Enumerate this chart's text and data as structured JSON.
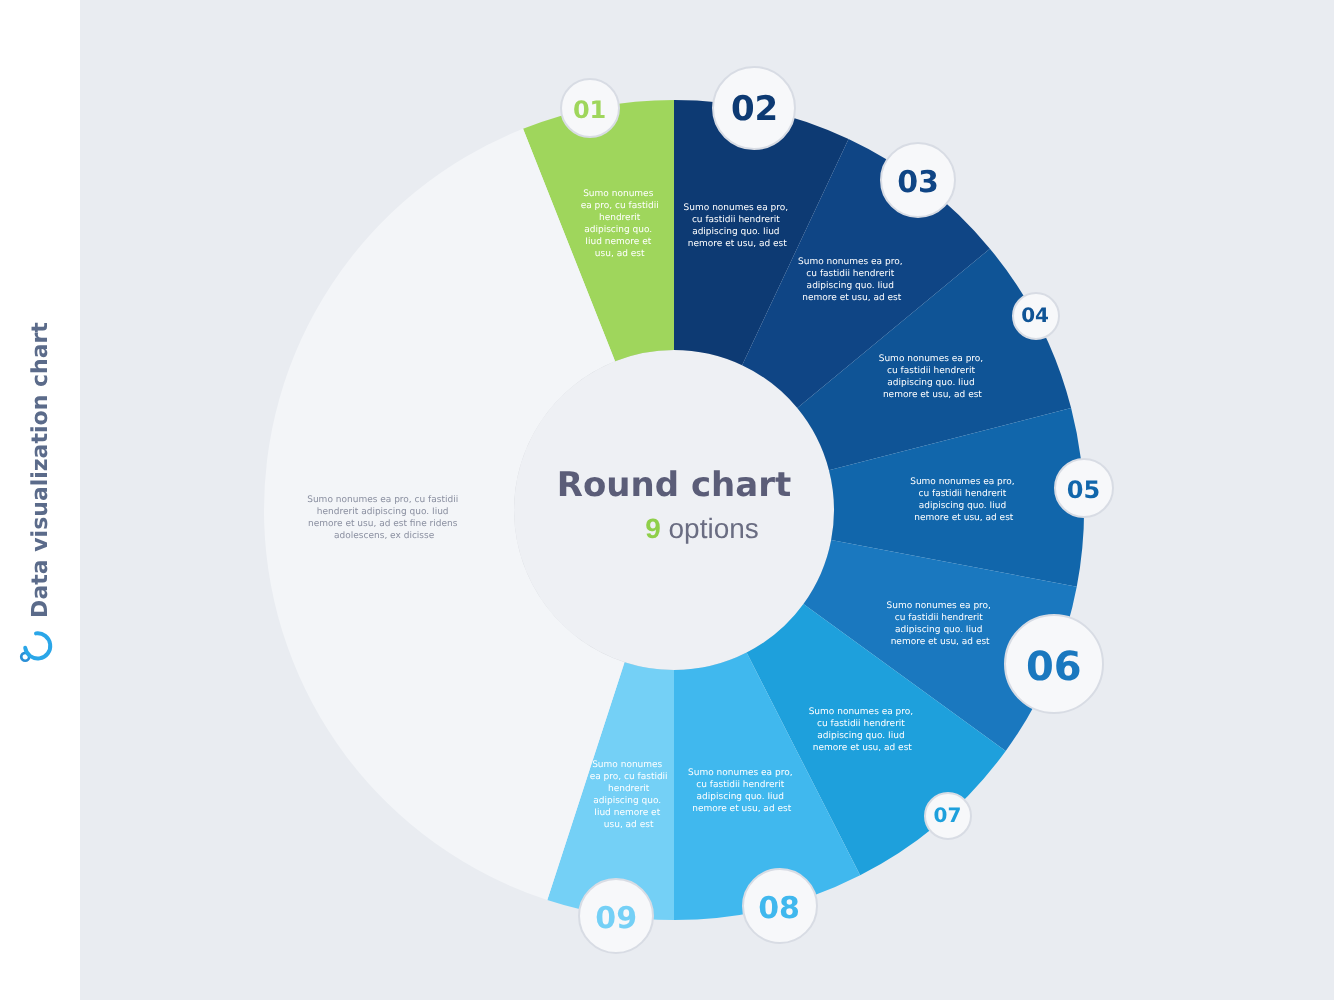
{
  "chart_data": {
    "type": "donut",
    "title": "Round chart",
    "subtitle": "9 options",
    "categories": [
      "01",
      "02",
      "03",
      "04",
      "05",
      "06",
      "07",
      "08",
      "09",
      null
    ],
    "values": [
      6,
      7,
      7,
      7,
      7,
      7,
      7.5,
      7.5,
      5,
      39
    ],
    "colors": [
      "#9fd65c",
      "#0d3a73",
      "#0f4585",
      "#0f5496",
      "#1166ab",
      "#1a78bf",
      "#1ea0dc",
      "#40b8ee",
      "#74d0f6",
      "#f3f5f8"
    ],
    "annotations": [
      "Sumo nonumes ea pro, cu fastidii hendrerit adipiscing quo. Iiud nemore et usu, ad est",
      "Sumo nonumes ea pro, cu fastidii hendrerit adipiscing quo. Iiud nemore et usu, ad est",
      "Sumo nonumes ea pro, cu fastidii hendrerit adipiscing quo. Iiud nemore et usu, ad est",
      "Sumo nonumes ea pro, cu fastidii hendrerit adipiscing quo. Iiud nemore et usu, ad est",
      "Sumo nonumes ea pro, cu fastidii hendrerit adipiscing quo. Iiud nemore et usu, ad est",
      "Sumo nonumes ea pro, cu fastidii hendrerit adipiscing quo. Iiud nemore et usu, ad est",
      "Sumo nonumes ea pro, cu fastidii hendrerit adipiscing quo. Iiud nemore et usu, ad est",
      "Sumo nonumes ea pro, cu fastidii hendrerit adipiscing quo. Iiud nemore et usu, ad est",
      "Sumo nonumes ea pro, cu fastidii hendrerit adipiscing quo. Iiud nemore et usu, ad est",
      "Sumo nonumes ea pro, cu fastidii hendrerit adipiscing quo. Iiud nemore et usu, ad est fine ridens adolescens, ex dicisse",
      "Data visualization chart"
    ]
  }
}
